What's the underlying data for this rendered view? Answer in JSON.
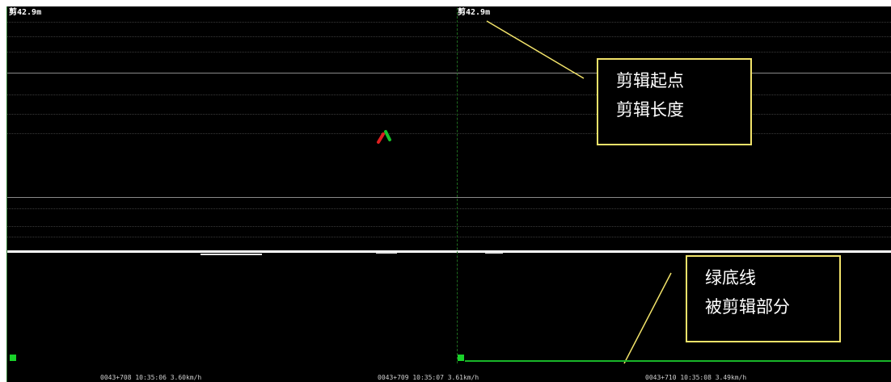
{
  "markers": {
    "left_label": "剪42.9m",
    "right_label": "剪42.9m"
  },
  "annotations": {
    "top_box": {
      "line1": "剪辑起点",
      "line2": "剪辑长度"
    },
    "bottom_box": {
      "line1": "绿底线",
      "line2": "被剪辑部分"
    }
  },
  "timeline": {
    "labels": [
      "0043+708 10:35:06 3.60km/h",
      "0043+709 10:35:07 3.61km/h",
      "0043+710 10:35:08 3.49km/h"
    ]
  },
  "colors": {
    "background": "#000000",
    "annotation_border": "#f2e36a",
    "edit_line": "#19b629",
    "marker_red": "#e02020",
    "marker_green": "#19c02a"
  },
  "icons": [
    "red-green-track-marker-icon",
    "green-square-marker-icon"
  ]
}
